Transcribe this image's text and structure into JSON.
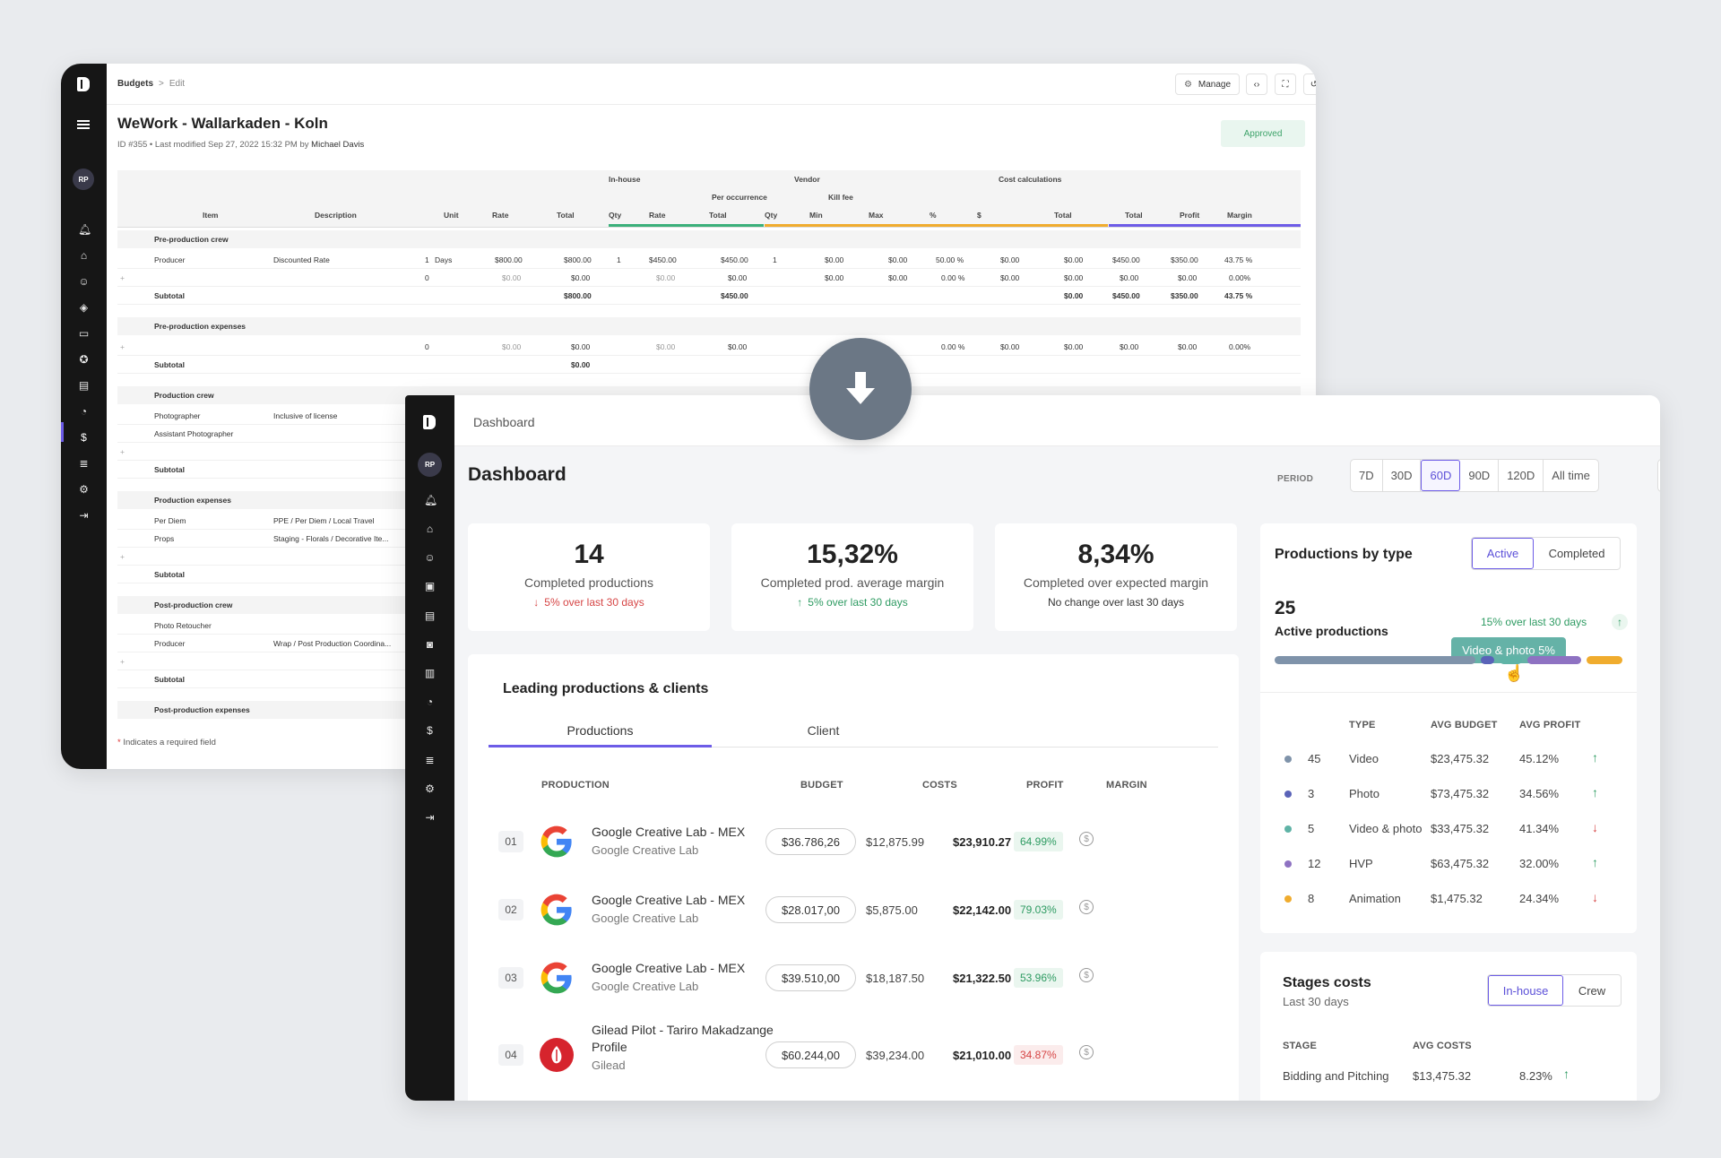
{
  "back": {
    "breadcrumb": {
      "root": "Budgets",
      "sep": ">",
      "current": "Edit"
    },
    "manage_label": "Manage",
    "title": "WeWork - Wallarkaden - Koln",
    "meta": {
      "prefix": "ID #355  •  Last modified Sep 27, 2022 15:32 PM by",
      "user": "Michael Davis"
    },
    "status": "Approved",
    "avatar": "RP",
    "groups": {
      "inhouse": "In-house",
      "vendor": "Vendor",
      "per_occurrence": "Per occurrence",
      "kill_fee": "Kill fee",
      "cost_calc": "Cost calculations"
    },
    "columns": [
      "Item",
      "Description",
      "Unit",
      "Rate",
      "Total",
      "Qty",
      "Rate",
      "Total",
      "Qty",
      "Min",
      "Max",
      "%",
      "$",
      "Total",
      "Total",
      "Profit",
      "Margin"
    ],
    "sections": {
      "pre_crew": "Pre-production crew",
      "pre_exp": "Pre-production expenses",
      "prod_crew": "Production crew",
      "prod_exp": "Production expenses",
      "post_crew": "Post-production crew",
      "post_exp": "Post-production expenses"
    },
    "subtotal": "Subtotal",
    "rows": {
      "producer": {
        "item": "Producer",
        "desc": "Discounted Rate",
        "unit_qty": "1",
        "unit": "Days",
        "rate": "$800.00",
        "total": "$800.00",
        "ih_qty": "1",
        "ih_rate": "$450.00",
        "ih_total": "$450.00",
        "v_qty": "1",
        "v_min": "$0.00",
        "v_max": "$0.00",
        "k_pct": "50.00 %",
        "k_usd": "$0.00",
        "v_total": "$0.00",
        "c_total": "$450.00",
        "c_profit": "$350.00",
        "c_margin": "43.75 %"
      },
      "empty": {
        "unit_qty": "0",
        "rate": "$0.00",
        "total": "$0.00",
        "ih_rate": "$0.00",
        "ih_total": "$0.00",
        "v_min": "$0.00",
        "v_max": "$0.00",
        "k_pct": "0.00 %",
        "k_usd": "$0.00",
        "v_total": "$0.00",
        "c_total": "$0.00",
        "c_profit": "$0.00",
        "c_margin": "0.00%"
      },
      "sub1": {
        "total": "$800.00",
        "ih_total": "$450.00",
        "v_total": "$0.00",
        "c_total": "$450.00",
        "c_profit": "$350.00",
        "c_margin": "43.75 %"
      },
      "sub2": {
        "total": "$0.00"
      },
      "photographer": {
        "item": "Photographer",
        "desc": "Inclusive of license"
      },
      "asst": {
        "item": "Assistant Photographer"
      },
      "per_diem": {
        "item": "Per Diem",
        "desc": "PPE / Per Diem / Local Travel"
      },
      "props": {
        "item": "Props",
        "desc": "Staging - Florals / Decorative Ite..."
      },
      "retoucher": {
        "item": "Photo Retoucher"
      },
      "producer2": {
        "item": "Producer",
        "desc": "Wrap / Post Production Coordina..."
      }
    },
    "required_note": "Indicates a required field",
    "required_mark": "*",
    "plus": "+"
  },
  "front": {
    "avatar": "RP",
    "breadcrumb": "Dashboard",
    "title": "Dashboard",
    "period_label": "PERIOD",
    "periods": [
      "7D",
      "30D",
      "60D",
      "90D",
      "120D",
      "All time"
    ],
    "selected_period": "60D",
    "kpis": [
      {
        "value": "14",
        "label": "Completed productions",
        "delta": "5% over last 30 days",
        "trend": "down"
      },
      {
        "value": "15,32%",
        "label": "Completed prod. average margin",
        "delta": "5% over last 30 days",
        "trend": "up"
      },
      {
        "value": "8,34%",
        "label": "Completed over expected margin",
        "delta": "No change over last 30 days",
        "trend": "none"
      }
    ],
    "leading": {
      "title": "Leading productions & clients",
      "tabs": [
        "Productions",
        "Client"
      ],
      "headers": [
        "PRODUCTION",
        "BUDGET",
        "COSTS",
        "PROFIT",
        "MARGIN"
      ],
      "rows": [
        {
          "num": "01",
          "name": "Google Creative Lab - MEX",
          "client": "Google Creative Lab",
          "budget": "$36.786,26",
          "costs": "$12,875.99",
          "profit": "$23,910.27",
          "margin": "64.99%",
          "good": true
        },
        {
          "num": "02",
          "name": "Google Creative Lab - MEX",
          "client": "Google Creative Lab",
          "budget": "$28.017,00",
          "costs": "$5,875.00",
          "profit": "$22,142.00",
          "margin": "79.03%",
          "good": true
        },
        {
          "num": "03",
          "name": "Google Creative Lab - MEX",
          "client": "Google Creative Lab",
          "budget": "$39.510,00",
          "costs": "$18,187.50",
          "profit": "$21,322.50",
          "margin": "53.96%",
          "good": true
        },
        {
          "num": "04",
          "name": "Gilead Pilot - Tariro Makadzange",
          "name2": "Profile",
          "client": "Gilead",
          "budget": "$60.244,00",
          "costs": "$39,234.00",
          "profit": "$21,010.00",
          "margin": "34.87%",
          "good": false
        }
      ]
    },
    "by_type": {
      "title": "Productions by type",
      "toggle": [
        "Active",
        "Completed"
      ],
      "count": "25",
      "count_label": "Active productions",
      "delta": "15% over last 30 days",
      "tooltip": "Video & photo 5%",
      "headers": [
        "TYPE",
        "AVG BUDGET",
        "AVG PROFIT"
      ],
      "rows": [
        {
          "count": "45",
          "type": "Video",
          "budget": "$23,475.32",
          "profit": "45.12%",
          "trend": "up",
          "color": "#7f93aa"
        },
        {
          "count": "3",
          "type": "Photo",
          "budget": "$73,475.32",
          "profit": "34.56%",
          "trend": "up",
          "color": "#5a63b8"
        },
        {
          "count": "5",
          "type": "Video & photo",
          "budget": "$33,475.32",
          "profit": "41.34%",
          "trend": "down",
          "color": "#5fb3a6"
        },
        {
          "count": "12",
          "type": "HVP",
          "budget": "$63,475.32",
          "profit": "32.00%",
          "trend": "up",
          "color": "#8e72c2"
        },
        {
          "count": "8",
          "type": "Animation",
          "budget": "$1,475.32",
          "profit": "24.34%",
          "trend": "down",
          "color": "#f0ac2e"
        }
      ]
    },
    "stages": {
      "title": "Stages costs",
      "subtitle": "Last 30 days",
      "toggle": [
        "In-house",
        "Crew"
      ],
      "headers": [
        "STAGE",
        "AVG COSTS"
      ],
      "rows": [
        {
          "stage": "Bidding and Pitching",
          "cost": "$13,475.32",
          "pct": "8.23%",
          "trend": "up"
        }
      ]
    }
  }
}
